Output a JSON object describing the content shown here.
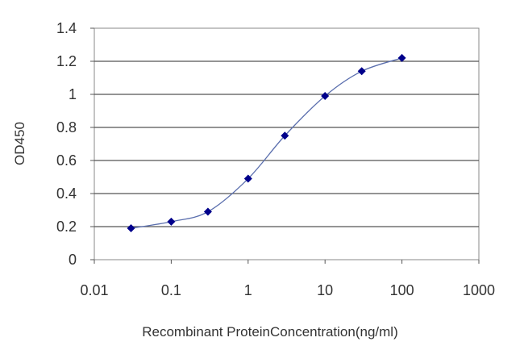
{
  "chart_data": {
    "type": "line",
    "title": "",
    "xlabel": "Recombinant ProteinConcentration(ng/ml)",
    "ylabel": "OD450",
    "x_scale": "log",
    "xlim": [
      0.01,
      1000
    ],
    "ylim": [
      0,
      1.4
    ],
    "x_ticks": [
      0.01,
      0.1,
      1,
      10,
      100,
      1000
    ],
    "x_tick_labels": [
      "0.01",
      "0.1",
      "1",
      "10",
      "100",
      "1000"
    ],
    "y_ticks": [
      0,
      0.2,
      0.4,
      0.6,
      0.8,
      1,
      1.2,
      1.4
    ],
    "y_tick_labels": [
      "0",
      "0.2",
      "0.4",
      "0.6",
      "0.8",
      "1",
      "1.2",
      "1.4"
    ],
    "grid": "horizontal",
    "legend": "none",
    "series": [
      {
        "x": [
          0.03,
          0.1,
          0.3,
          1,
          3,
          10,
          30,
          100
        ],
        "values": [
          0.19,
          0.23,
          0.29,
          0.49,
          0.75,
          0.99,
          1.14,
          1.22
        ],
        "color": "#00008b",
        "line_color": "#5b6fae"
      }
    ]
  }
}
